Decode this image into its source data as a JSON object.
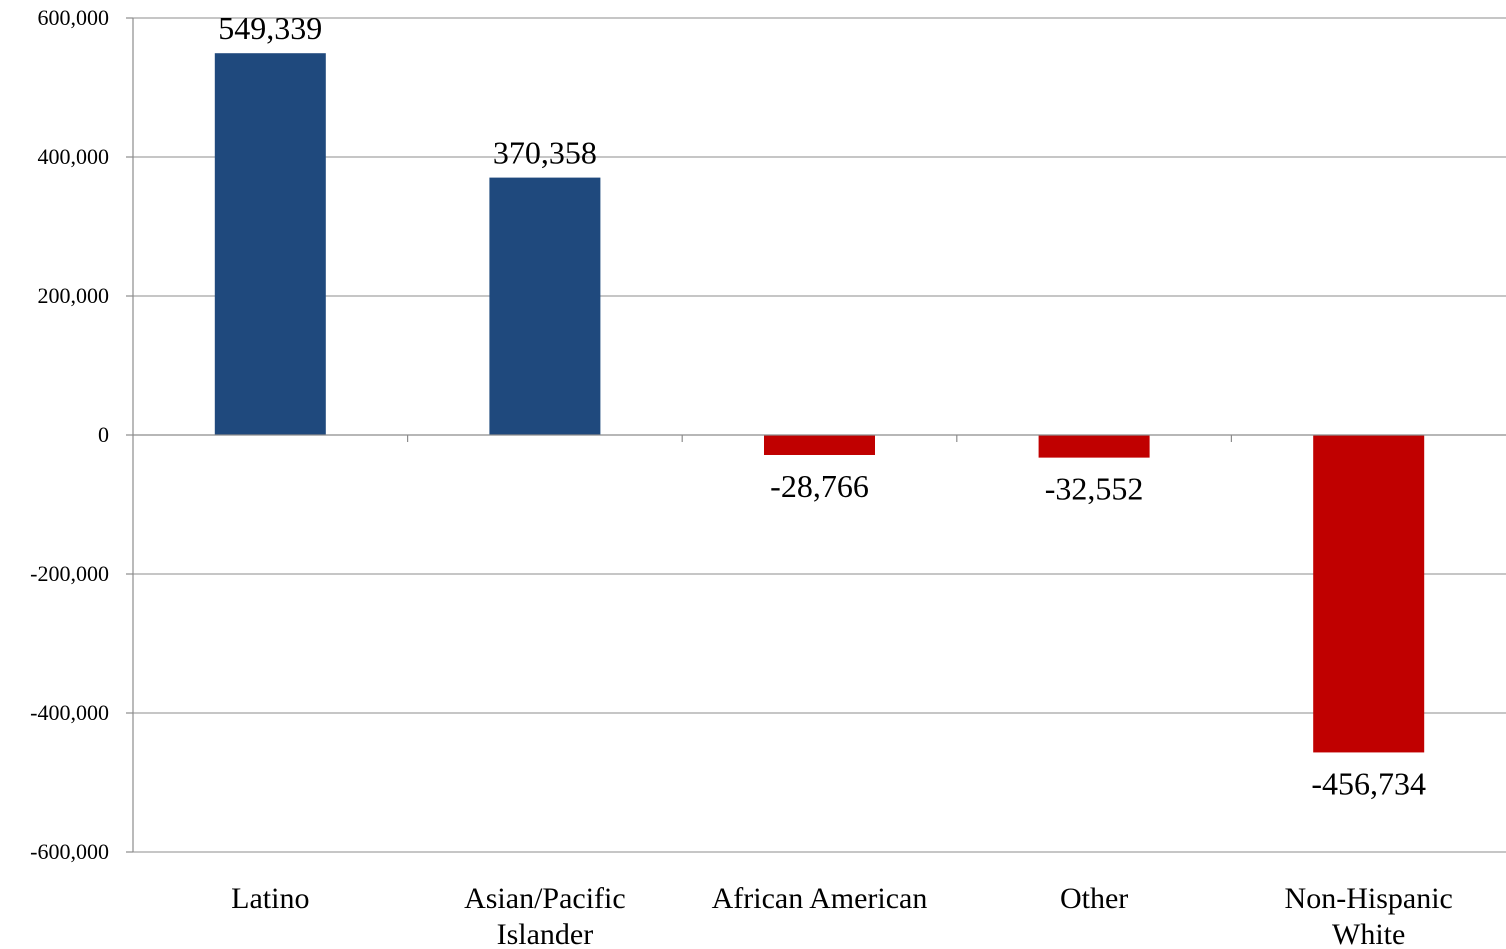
{
  "chart_data": {
    "type": "bar",
    "categories": [
      "Latino",
      "Asian/Pacific Islander",
      "African American",
      "Other",
      "Non-Hispanic White"
    ],
    "category_lines": [
      [
        "Latino"
      ],
      [
        "Asian/Pacific",
        "Islander"
      ],
      [
        "African American"
      ],
      [
        "Other"
      ],
      [
        "Non-Hispanic",
        "White"
      ]
    ],
    "values": [
      549339,
      370358,
      -28766,
      -32552,
      -456734
    ],
    "value_labels": [
      "549,339",
      "370,358",
      "-28,766",
      "-32,552",
      "-456,734"
    ],
    "ylim": [
      -600000,
      600000
    ],
    "yticks": [
      600000,
      400000,
      200000,
      0,
      -200000,
      -400000,
      -600000
    ],
    "ytick_labels": [
      "600,000",
      "400,000",
      "200,000",
      "0",
      "-200,000",
      "-400,000",
      "-600,000"
    ],
    "grid": true,
    "legend": "none",
    "colors": {
      "positive": "#1f497d",
      "negative": "#c00000",
      "grid": "#8c8c8c"
    }
  }
}
